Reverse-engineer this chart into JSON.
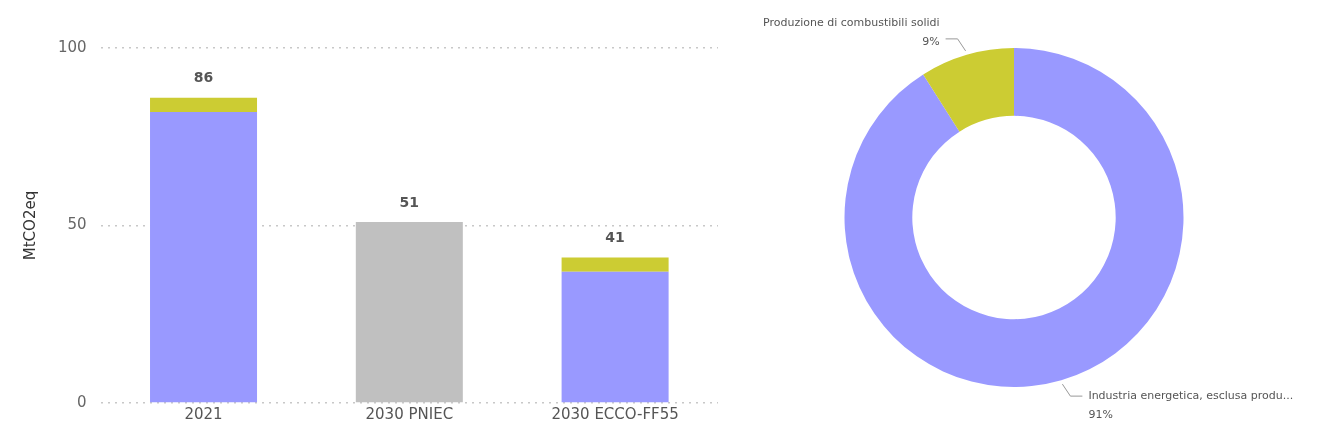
{
  "chart_data": [
    {
      "type": "bar",
      "ylabel": "MtCO2eq",
      "categories": [
        "2021",
        "2030 PNIEC",
        "2030 ECCO-FF55"
      ],
      "stacked": true,
      "series": [
        {
          "color": "#9999ff",
          "values": [
            82,
            null,
            37
          ]
        },
        {
          "color": "#cccc33",
          "values": [
            4,
            null,
            4
          ]
        },
        {
          "color": "#c0c0c0",
          "values": [
            null,
            51,
            null
          ]
        }
      ],
      "ylim": [
        0,
        100
      ],
      "yticks": [
        0,
        50,
        100
      ],
      "grid": "y",
      "totals": [
        "86",
        "51",
        "41"
      ]
    },
    {
      "type": "donut",
      "categories": [
        "Industria energetica, esclusa produ...",
        "Produzione di combustibili solidi"
      ],
      "values": [
        91,
        9
      ],
      "colors": [
        "#9999ff",
        "#cccc33"
      ],
      "value_labels": [
        "91%",
        "9%"
      ]
    }
  ]
}
